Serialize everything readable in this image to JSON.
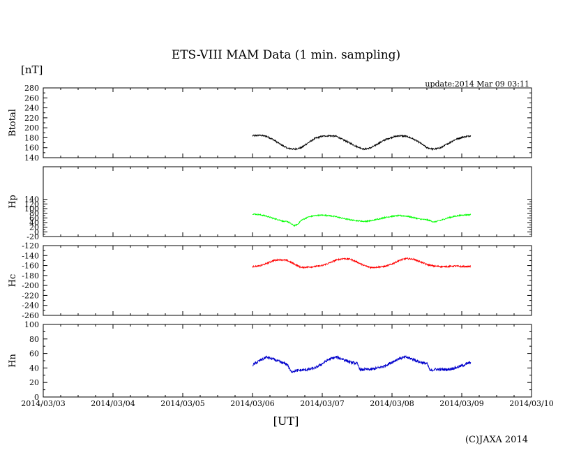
{
  "title": "ETS-VIII MAM Data (1 min. sampling)",
  "unit_label": "[nT]",
  "update_text": "update:2014 Mar 09 03:11",
  "xlabel": "[UT]",
  "copyright": "(C)JAXA 2014",
  "chart_data": {
    "type": "line",
    "x_axis": {
      "ticks": [
        "2014/03/03",
        "2014/03/04",
        "2014/03/05",
        "2014/03/06",
        "2014/03/07",
        "2014/03/08",
        "2014/03/09",
        "2014/03/10"
      ],
      "range": [
        "2014/03/03 00:00",
        "2014/03/10 00:00"
      ]
    },
    "grid": false,
    "panels": [
      {
        "ylabel": "Btotal",
        "ylim": [
          140,
          280
        ],
        "yticks": [
          140,
          160,
          180,
          200,
          220,
          240,
          260,
          280
        ],
        "color": "#000000",
        "noise": 1.5,
        "points": [
          [
            3.0,
            184
          ],
          [
            3.1,
            185
          ],
          [
            3.2,
            183
          ],
          [
            3.3,
            176
          ],
          [
            3.4,
            167
          ],
          [
            3.5,
            159
          ],
          [
            3.6,
            157
          ],
          [
            3.7,
            160
          ],
          [
            3.8,
            170
          ],
          [
            3.9,
            179
          ],
          [
            4.0,
            183
          ],
          [
            4.1,
            184
          ],
          [
            4.2,
            183
          ],
          [
            4.3,
            176
          ],
          [
            4.5,
            162
          ],
          [
            4.6,
            157
          ],
          [
            4.7,
            160
          ],
          [
            4.8,
            168
          ],
          [
            4.9,
            176
          ],
          [
            5.0,
            181
          ],
          [
            5.1,
            184
          ],
          [
            5.2,
            183
          ],
          [
            5.3,
            178
          ],
          [
            5.4,
            170
          ],
          [
            5.5,
            160
          ],
          [
            5.6,
            157
          ],
          [
            5.7,
            160
          ],
          [
            5.8,
            168
          ],
          [
            5.9,
            176
          ],
          [
            6.0,
            181
          ],
          [
            6.13,
            184
          ]
        ]
      },
      {
        "ylabel": "Hp",
        "ylim": [
          -20,
          280
        ],
        "yticks": [
          -20,
          0,
          20,
          40,
          60,
          80,
          100,
          120,
          140
        ],
        "color": "#00ff00",
        "noise": 2.5,
        "points": [
          [
            3.0,
            77
          ],
          [
            3.1,
            74
          ],
          [
            3.2,
            68
          ],
          [
            3.3,
            58
          ],
          [
            3.4,
            50
          ],
          [
            3.45,
            44
          ],
          [
            3.5,
            45
          ],
          [
            3.55,
            35
          ],
          [
            3.6,
            27
          ],
          [
            3.65,
            33
          ],
          [
            3.7,
            50
          ],
          [
            3.8,
            64
          ],
          [
            3.9,
            70
          ],
          [
            4.0,
            72
          ],
          [
            4.1,
            70
          ],
          [
            4.2,
            65
          ],
          [
            4.3,
            58
          ],
          [
            4.4,
            52
          ],
          [
            4.5,
            48
          ],
          [
            4.6,
            45
          ],
          [
            4.7,
            48
          ],
          [
            4.8,
            55
          ],
          [
            4.9,
            62
          ],
          [
            5.0,
            67
          ],
          [
            5.1,
            70
          ],
          [
            5.2,
            68
          ],
          [
            5.3,
            62
          ],
          [
            5.4,
            55
          ],
          [
            5.5,
            52
          ],
          [
            5.55,
            48
          ],
          [
            5.6,
            42
          ],
          [
            5.7,
            50
          ],
          [
            5.8,
            60
          ],
          [
            5.9,
            67
          ],
          [
            6.0,
            72
          ],
          [
            6.13,
            74
          ]
        ]
      },
      {
        "ylabel": "Hc",
        "ylim": [
          -260,
          -120
        ],
        "yticks": [
          -260,
          -240,
          -220,
          -200,
          -180,
          -160,
          -140,
          -120
        ],
        "color": "#ff0000",
        "noise": 1.5,
        "points": [
          [
            3.0,
            -162
          ],
          [
            3.1,
            -161
          ],
          [
            3.2,
            -156
          ],
          [
            3.3,
            -150
          ],
          [
            3.4,
            -148
          ],
          [
            3.5,
            -150
          ],
          [
            3.6,
            -157
          ],
          [
            3.7,
            -164
          ],
          [
            3.8,
            -163
          ],
          [
            3.9,
            -162
          ],
          [
            4.0,
            -160
          ],
          [
            4.1,
            -155
          ],
          [
            4.2,
            -149
          ],
          [
            4.3,
            -146
          ],
          [
            4.4,
            -147
          ],
          [
            4.5,
            -153
          ],
          [
            4.6,
            -160
          ],
          [
            4.7,
            -164
          ],
          [
            4.8,
            -163
          ],
          [
            4.9,
            -162
          ],
          [
            5.0,
            -157
          ],
          [
            5.1,
            -150
          ],
          [
            5.2,
            -146
          ],
          [
            5.3,
            -147
          ],
          [
            5.4,
            -152
          ],
          [
            5.5,
            -158
          ],
          [
            5.6,
            -161
          ],
          [
            5.7,
            -162
          ],
          [
            5.8,
            -162
          ],
          [
            5.9,
            -161
          ],
          [
            6.0,
            -162
          ],
          [
            6.13,
            -162
          ]
        ]
      },
      {
        "ylabel": "Hn",
        "ylim": [
          0,
          100
        ],
        "yticks": [
          0,
          20,
          40,
          60,
          80,
          100
        ],
        "color": "#0000cc",
        "noise": 2.0,
        "points": [
          [
            3.0,
            44
          ],
          [
            3.1,
            50
          ],
          [
            3.2,
            55
          ],
          [
            3.3,
            52
          ],
          [
            3.4,
            48
          ],
          [
            3.5,
            45
          ],
          [
            3.55,
            35
          ],
          [
            3.6,
            36
          ],
          [
            3.7,
            37
          ],
          [
            3.8,
            38
          ],
          [
            3.9,
            40
          ],
          [
            4.0,
            46
          ],
          [
            4.1,
            52
          ],
          [
            4.2,
            55
          ],
          [
            4.3,
            52
          ],
          [
            4.4,
            48
          ],
          [
            4.5,
            46
          ],
          [
            4.55,
            37
          ],
          [
            4.6,
            38
          ],
          [
            4.7,
            38
          ],
          [
            4.8,
            40
          ],
          [
            4.9,
            43
          ],
          [
            5.0,
            48
          ],
          [
            5.1,
            53
          ],
          [
            5.2,
            55
          ],
          [
            5.3,
            52
          ],
          [
            5.4,
            48
          ],
          [
            5.5,
            46
          ],
          [
            5.55,
            36
          ],
          [
            5.6,
            38
          ],
          [
            5.7,
            38
          ],
          [
            5.8,
            38
          ],
          [
            5.9,
            40
          ],
          [
            6.0,
            43
          ],
          [
            6.13,
            48
          ]
        ]
      }
    ]
  }
}
